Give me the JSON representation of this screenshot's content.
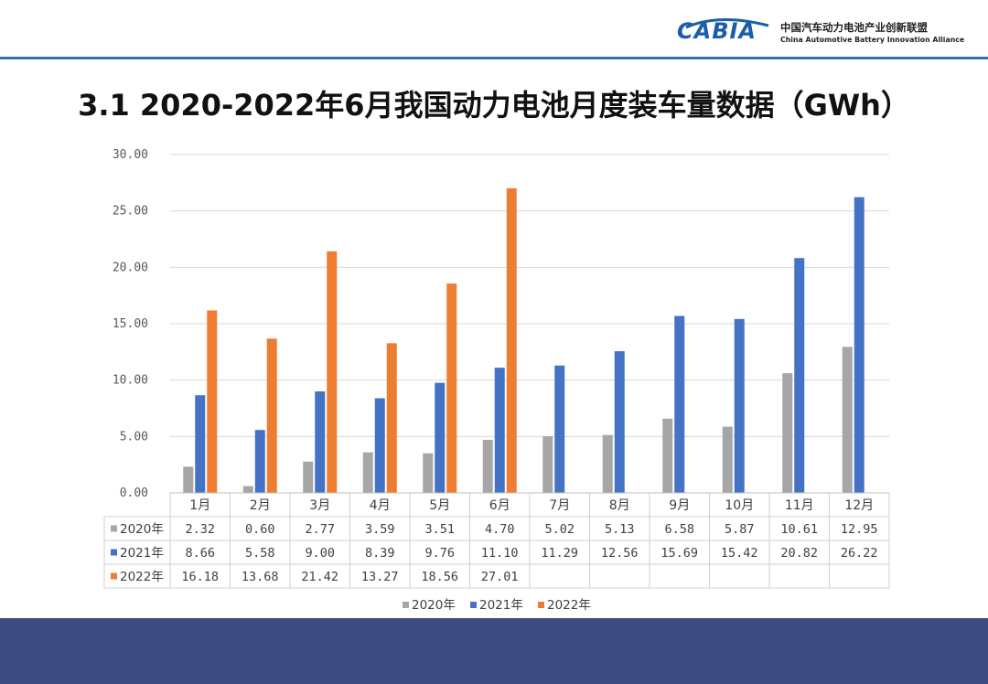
{
  "header": {
    "logo_mark": "CABIA",
    "logo_cn": "中国汽车动力电池产业创新联盟",
    "logo_en": "China Automotive Battery Innovation Alliance"
  },
  "slide": {
    "title": "3.1 2020-2022年6月我国动力电池月度装车量数据（GWh）"
  },
  "colors": {
    "series_2020": "#a6a6a6",
    "series_2021": "#4472c4",
    "series_2022": "#ed7d31",
    "header_rule": "#2f6fb3",
    "footer_band": "#3f4c82"
  },
  "chart_data": {
    "type": "bar",
    "title": "",
    "xlabel": "",
    "ylabel": "",
    "ylim": [
      0,
      30
    ],
    "yticks": [
      "0.00",
      "5.00",
      "10.00",
      "15.00",
      "20.00",
      "25.00",
      "30.00"
    ],
    "grid": true,
    "legend_position": "bottom",
    "categories": [
      "1月",
      "2月",
      "3月",
      "4月",
      "5月",
      "6月",
      "7月",
      "8月",
      "9月",
      "10月",
      "11月",
      "12月"
    ],
    "series": [
      {
        "name": "2020年",
        "color": "#a6a6a6",
        "values": [
          2.32,
          0.6,
          2.77,
          3.59,
          3.51,
          4.7,
          5.02,
          5.13,
          6.58,
          5.87,
          10.61,
          12.95
        ],
        "labels": [
          "2.32",
          "0.60",
          "2.77",
          "3.59",
          "3.51",
          "4.70",
          "5.02",
          "5.13",
          "6.58",
          "5.87",
          "10.61",
          "12.95"
        ]
      },
      {
        "name": "2021年",
        "color": "#4472c4",
        "values": [
          8.66,
          5.58,
          9.0,
          8.39,
          9.76,
          11.1,
          11.29,
          12.56,
          15.69,
          15.42,
          20.82,
          26.22
        ],
        "labels": [
          "8.66",
          "5.58",
          "9.00",
          "8.39",
          "9.76",
          "11.10",
          "11.29",
          "12.56",
          "15.69",
          "15.42",
          "20.82",
          "26.22"
        ]
      },
      {
        "name": "2022年",
        "color": "#ed7d31",
        "values": [
          16.18,
          13.68,
          21.42,
          13.27,
          18.56,
          27.01,
          null,
          null,
          null,
          null,
          null,
          null
        ],
        "labels": [
          "16.18",
          "13.68",
          "21.42",
          "13.27",
          "18.56",
          "27.01",
          "",
          "",
          "",
          "",
          "",
          ""
        ]
      }
    ]
  }
}
